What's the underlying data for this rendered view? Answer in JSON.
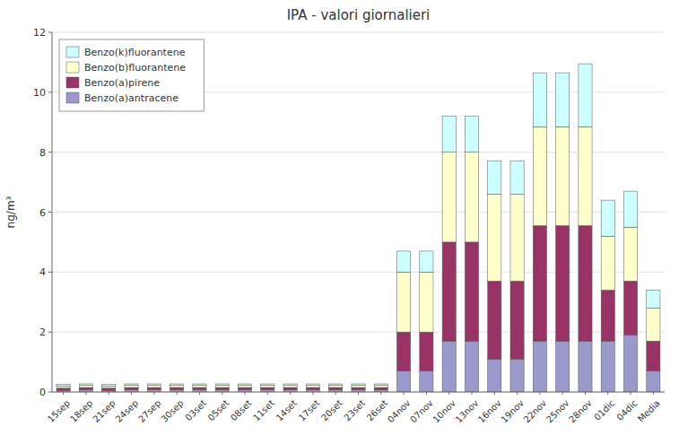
{
  "chart_data": {
    "type": "bar",
    "stacked": true,
    "title": "IPA - valori giornalieri",
    "ylabel": "ng/m³",
    "categories": [
      "15sep",
      "18sep",
      "21sep",
      "24sep",
      "27sep",
      "30sep",
      "03set",
      "05set",
      "08set",
      "11set",
      "14set",
      "17set",
      "20set",
      "23set",
      "26set",
      "04nov",
      "07nov",
      "10nov",
      "13nov",
      "16nov",
      "19nov",
      "22nov",
      "25nov",
      "28nov",
      "01dic",
      "04dic",
      "Media"
    ],
    "series": [
      {
        "name": "Benzo(a)antracene",
        "color": "#9999cc",
        "values": [
          0.05,
          0.07,
          0.05,
          0.07,
          0.07,
          0.07,
          0.07,
          0.07,
          0.07,
          0.07,
          0.07,
          0.07,
          0.07,
          0.07,
          0.07,
          0.7,
          0.7,
          1.7,
          1.7,
          1.1,
          1.1,
          1.7,
          1.7,
          1.7,
          1.7,
          1.9,
          0.7
        ]
      },
      {
        "name": "Benzo(a)pirene",
        "color": "#993366",
        "values": [
          0.08,
          0.08,
          0.08,
          0.08,
          0.08,
          0.08,
          0.08,
          0.08,
          0.08,
          0.08,
          0.08,
          0.08,
          0.08,
          0.08,
          0.08,
          1.3,
          1.3,
          3.3,
          3.3,
          2.6,
          2.6,
          3.85,
          3.85,
          3.85,
          1.7,
          1.8,
          1.0
        ]
      },
      {
        "name": "Benzo(b)fluorantene",
        "color": "#ffffcc",
        "values": [
          0.07,
          0.07,
          0.07,
          0.07,
          0.07,
          0.07,
          0.07,
          0.07,
          0.07,
          0.07,
          0.07,
          0.07,
          0.07,
          0.07,
          0.07,
          2.0,
          2.0,
          3.0,
          3.0,
          2.9,
          2.9,
          3.3,
          3.3,
          3.3,
          1.8,
          1.8,
          1.1
        ]
      },
      {
        "name": "Benzo(k)fluorantene",
        "color": "#ccffff",
        "values": [
          0.05,
          0.05,
          0.05,
          0.05,
          0.05,
          0.05,
          0.05,
          0.05,
          0.05,
          0.05,
          0.05,
          0.05,
          0.05,
          0.05,
          0.05,
          0.7,
          0.7,
          1.2,
          1.2,
          1.1,
          1.1,
          1.8,
          1.8,
          2.1,
          1.2,
          1.2,
          0.6
        ]
      }
    ],
    "ylim": [
      0,
      12
    ],
    "yticks": [
      0,
      2,
      4,
      6,
      8,
      10,
      12
    ],
    "grid": true,
    "legend": "upper left"
  }
}
